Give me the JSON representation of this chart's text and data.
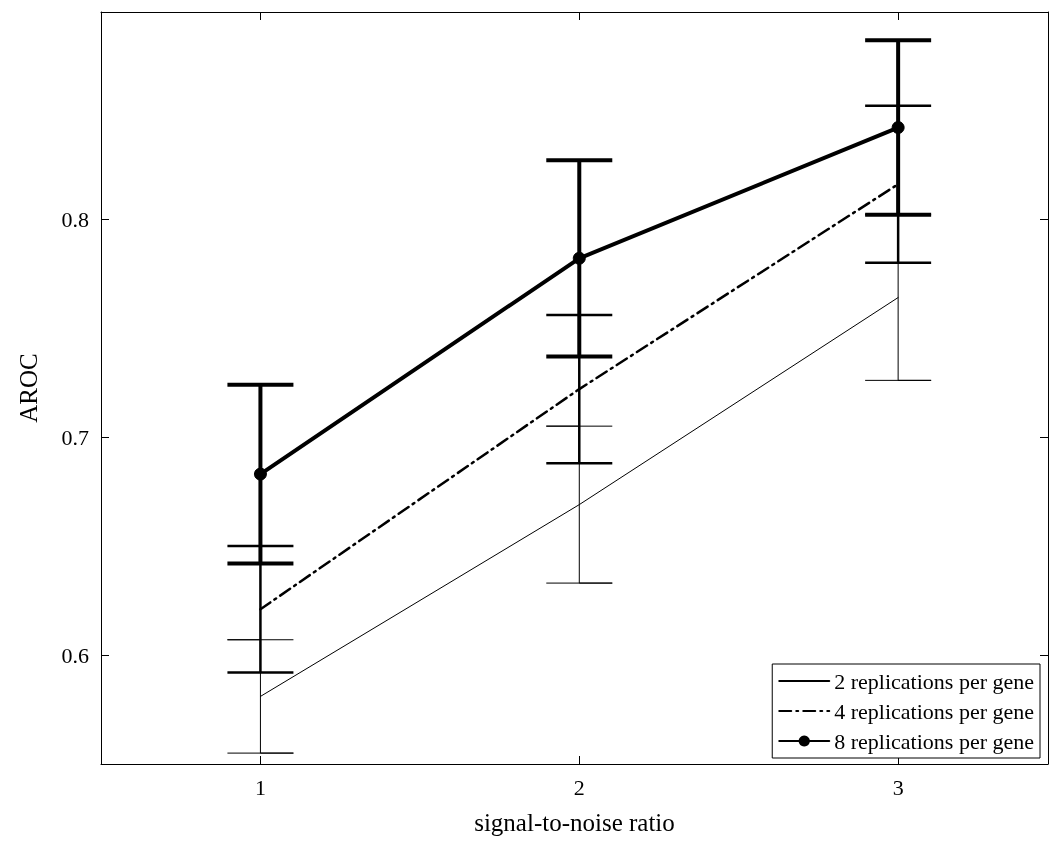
{
  "chart_data": {
    "type": "line",
    "xlabel": "signal-to-noise ratio",
    "ylabel": "AROC",
    "x": [
      1,
      2,
      3
    ],
    "series": [
      {
        "name": "2 replications per gene",
        "color": "#000000",
        "values": [
          0.581,
          0.669,
          0.764
        ],
        "errors": [
          0.026,
          0.036,
          0.038
        ],
        "line_style": "solid",
        "marker": "none"
      },
      {
        "name": "4 replications per gene",
        "color": "#000000",
        "values": [
          0.621,
          0.722,
          0.816
        ],
        "errors": [
          0.029,
          0.034,
          0.036
        ],
        "line_style": "dashdot",
        "marker": "none"
      },
      {
        "name": "8 replications per gene",
        "color": "#000000",
        "values": [
          0.683,
          0.782,
          0.842
        ],
        "errors": [
          0.041,
          0.045,
          0.04
        ],
        "line_style": "solid",
        "marker": "circle"
      }
    ],
    "xlim": [
      0.5,
      3.47
    ],
    "xticks": [
      1,
      2,
      3
    ],
    "ylim": [
      0.55,
      0.895
    ],
    "yticks": [
      0.6,
      0.7,
      0.8
    ],
    "grid": false,
    "legend": "bottom right"
  }
}
